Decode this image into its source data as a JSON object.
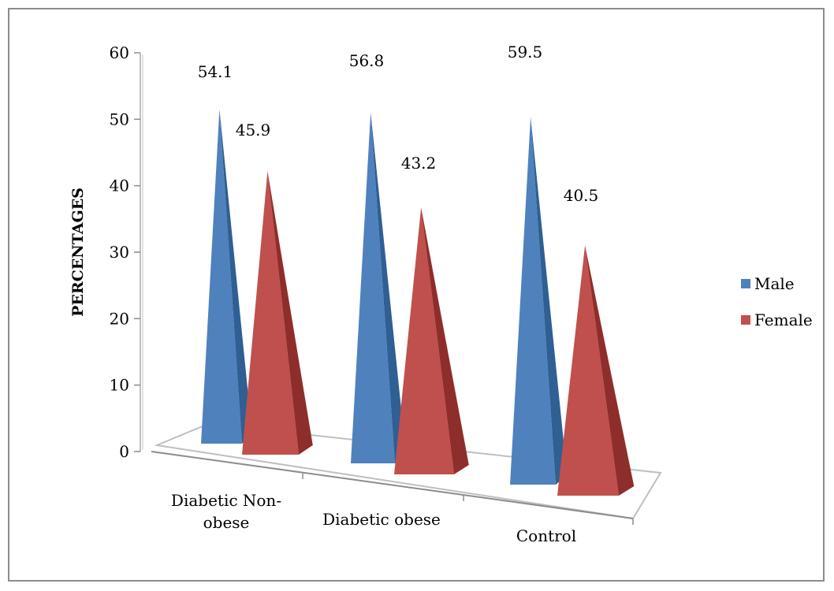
{
  "chart_data": {
    "type": "bar",
    "title": "",
    "xlabel": "",
    "ylabel": "PERCENTAGES",
    "ylim": [
      0,
      60
    ],
    "yticks": [
      0,
      10,
      20,
      30,
      40,
      50,
      60
    ],
    "categories": [
      [
        "Diabetic Non-",
        "obese"
      ],
      [
        "Diabetic obese"
      ],
      [
        "Control"
      ]
    ],
    "series": [
      {
        "name": "Male",
        "values": [
          54.1,
          56.8,
          59.5
        ],
        "color": "#4f81bd",
        "label_format": "54.1"
      },
      {
        "name": "Female",
        "values": [
          45.9,
          43.2,
          40.5
        ],
        "color": "#c0504d"
      }
    ],
    "legend_position": "right",
    "grid": false,
    "shape": "3d-pyramid"
  }
}
